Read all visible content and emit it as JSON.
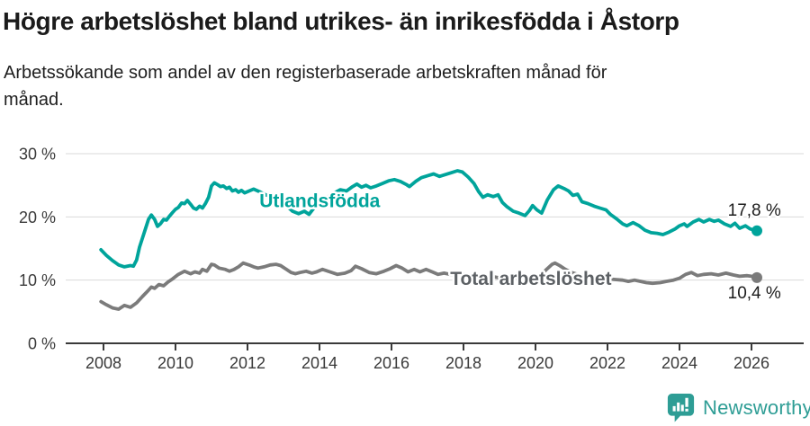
{
  "title": "Högre arbetslöshet bland utrikes- än inrikesfödda i Åstorp",
  "subtitle_lines": [
    "Arbetssökande som andel av den registerbaserade arbetskraften månad för",
    "månad."
  ],
  "footer": {
    "brand": "Newsworthy",
    "brand_color": "#2E9D95",
    "logo_icon": "bar-chart-speech-bubble-icon"
  },
  "colors": {
    "background": "#ffffff",
    "accent_teal": "#00A49B",
    "neutral_gray": "#7b7b7b",
    "grid": "#dadada",
    "axis": "#3a3a3a",
    "text": "#1b1b1b"
  },
  "chart_data": {
    "type": "line",
    "title": "Högre arbetslöshet bland utrikes- än inrikesfödda i Åstorp",
    "subtitle": "Arbetssökande som andel av den registerbaserade arbetskraften månad för månad.",
    "grid": "horizontal-only",
    "x_axis": {
      "ticks": [
        2008,
        2010,
        2012,
        2014,
        2016,
        2018,
        2020,
        2022,
        2024,
        2026
      ],
      "tick_labels": [
        "2008",
        "2010",
        "2012",
        "2014",
        "2016",
        "2018",
        "2020",
        "2022",
        "2024",
        "2026"
      ],
      "range": [
        2006.88,
        2027.45
      ]
    },
    "y_axis": {
      "ticks": [
        {
          "value": 0,
          "label": "0 %"
        },
        {
          "value": 10,
          "label": "10 %"
        },
        {
          "value": 20,
          "label": "20 %"
        },
        {
          "value": 30,
          "label": "30 %"
        }
      ],
      "unit": "%",
      "range": [
        0,
        34.5
      ]
    },
    "legend_position": "inline-labels",
    "series": [
      {
        "id": "utlandsfodda",
        "name": "Utlandsfödda",
        "color": "#00A49B",
        "label_color": "#00A49B",
        "end_value": "17,8 %",
        "inline_label": {
          "text": "Utlandsfödda",
          "year": 2012.33,
          "value": 21.55,
          "anchor": "start"
        },
        "end_label": {
          "text": "17,8 %",
          "year": 2026.82,
          "value": 20.2,
          "anchor": "end"
        },
        "points": [
          [
            2007.93,
            14.8
          ],
          [
            2008.08,
            13.9
          ],
          [
            2008.25,
            13.1
          ],
          [
            2008.42,
            12.4
          ],
          [
            2008.58,
            12.1
          ],
          [
            2008.75,
            12.3
          ],
          [
            2008.83,
            12.2
          ],
          [
            2008.92,
            13.2
          ],
          [
            2009.0,
            15.2
          ],
          [
            2009.08,
            16.6
          ],
          [
            2009.17,
            18.2
          ],
          [
            2009.25,
            19.6
          ],
          [
            2009.33,
            20.3
          ],
          [
            2009.42,
            19.6
          ],
          [
            2009.5,
            18.5
          ],
          [
            2009.58,
            18.9
          ],
          [
            2009.67,
            19.6
          ],
          [
            2009.75,
            19.5
          ],
          [
            2009.83,
            20.1
          ],
          [
            2009.92,
            20.7
          ],
          [
            2010.0,
            21.2
          ],
          [
            2010.08,
            21.5
          ],
          [
            2010.17,
            22.2
          ],
          [
            2010.25,
            22.1
          ],
          [
            2010.33,
            22.6
          ],
          [
            2010.42,
            22.0
          ],
          [
            2010.5,
            21.4
          ],
          [
            2010.58,
            21.2
          ],
          [
            2010.67,
            21.7
          ],
          [
            2010.75,
            21.4
          ],
          [
            2010.83,
            22.1
          ],
          [
            2010.92,
            23.1
          ],
          [
            2011.0,
            24.9
          ],
          [
            2011.08,
            25.4
          ],
          [
            2011.17,
            25.1
          ],
          [
            2011.25,
            24.8
          ],
          [
            2011.33,
            24.9
          ],
          [
            2011.42,
            24.5
          ],
          [
            2011.5,
            24.7
          ],
          [
            2011.58,
            24.1
          ],
          [
            2011.67,
            24.3
          ],
          [
            2011.75,
            23.9
          ],
          [
            2011.83,
            24.2
          ],
          [
            2011.92,
            23.8
          ],
          [
            2012.0,
            24.0
          ],
          [
            2012.17,
            24.4
          ],
          [
            2012.33,
            24.0
          ],
          [
            2012.5,
            23.5
          ],
          [
            2012.67,
            23.2
          ],
          [
            2012.83,
            23.3
          ],
          [
            2012.92,
            22.8
          ],
          [
            2013.08,
            21.8
          ],
          [
            2013.25,
            20.9
          ],
          [
            2013.42,
            20.5
          ],
          [
            2013.58,
            20.9
          ],
          [
            2013.71,
            20.4
          ],
          [
            2013.83,
            21.3
          ],
          [
            2013.96,
            22.1
          ],
          [
            2014.08,
            22.7
          ],
          [
            2014.25,
            23.2
          ],
          [
            2014.42,
            23.8
          ],
          [
            2014.58,
            24.3
          ],
          [
            2014.75,
            24.1
          ],
          [
            2014.92,
            24.8
          ],
          [
            2015.04,
            25.2
          ],
          [
            2015.17,
            24.7
          ],
          [
            2015.29,
            25.0
          ],
          [
            2015.42,
            24.6
          ],
          [
            2015.58,
            24.9
          ],
          [
            2015.75,
            25.3
          ],
          [
            2015.92,
            25.7
          ],
          [
            2016.08,
            25.9
          ],
          [
            2016.25,
            25.6
          ],
          [
            2016.42,
            25.1
          ],
          [
            2016.5,
            24.8
          ],
          [
            2016.67,
            25.6
          ],
          [
            2016.83,
            26.2
          ],
          [
            2017.0,
            26.5
          ],
          [
            2017.17,
            26.8
          ],
          [
            2017.33,
            26.4
          ],
          [
            2017.5,
            26.7
          ],
          [
            2017.67,
            27.0
          ],
          [
            2017.83,
            27.3
          ],
          [
            2017.97,
            27.1
          ],
          [
            2018.13,
            26.3
          ],
          [
            2018.29,
            25.3
          ],
          [
            2018.42,
            24.0
          ],
          [
            2018.54,
            23.1
          ],
          [
            2018.67,
            23.5
          ],
          [
            2018.83,
            23.2
          ],
          [
            2018.96,
            23.5
          ],
          [
            2019.08,
            22.3
          ],
          [
            2019.21,
            21.6
          ],
          [
            2019.38,
            20.9
          ],
          [
            2019.54,
            20.6
          ],
          [
            2019.71,
            20.2
          ],
          [
            2019.83,
            21.0
          ],
          [
            2019.92,
            21.8
          ],
          [
            2020.04,
            21.1
          ],
          [
            2020.17,
            20.6
          ],
          [
            2020.33,
            22.7
          ],
          [
            2020.5,
            24.3
          ],
          [
            2020.63,
            24.9
          ],
          [
            2020.79,
            24.5
          ],
          [
            2020.92,
            24.1
          ],
          [
            2021.04,
            23.4
          ],
          [
            2021.17,
            23.6
          ],
          [
            2021.29,
            22.4
          ],
          [
            2021.46,
            22.1
          ],
          [
            2021.63,
            21.7
          ],
          [
            2021.79,
            21.4
          ],
          [
            2021.96,
            21.1
          ],
          [
            2022.08,
            20.4
          ],
          [
            2022.25,
            19.7
          ],
          [
            2022.42,
            18.9
          ],
          [
            2022.54,
            18.6
          ],
          [
            2022.71,
            19.1
          ],
          [
            2022.88,
            18.6
          ],
          [
            2023.04,
            17.9
          ],
          [
            2023.21,
            17.5
          ],
          [
            2023.38,
            17.4
          ],
          [
            2023.54,
            17.2
          ],
          [
            2023.71,
            17.6
          ],
          [
            2023.88,
            18.1
          ],
          [
            2024.0,
            18.6
          ],
          [
            2024.13,
            18.9
          ],
          [
            2024.21,
            18.5
          ],
          [
            2024.38,
            19.2
          ],
          [
            2024.54,
            19.6
          ],
          [
            2024.67,
            19.2
          ],
          [
            2024.83,
            19.6
          ],
          [
            2024.96,
            19.3
          ],
          [
            2025.08,
            19.5
          ],
          [
            2025.25,
            18.9
          ],
          [
            2025.42,
            18.5
          ],
          [
            2025.54,
            19.0
          ],
          [
            2025.67,
            18.2
          ],
          [
            2025.83,
            18.6
          ],
          [
            2025.96,
            18.1
          ],
          [
            2026.15,
            17.8
          ]
        ]
      },
      {
        "id": "total",
        "name": "Total arbetslöshet",
        "color": "#7b7b7b",
        "label_color": "#5d6165",
        "end_value": "10,4 %",
        "inline_label": {
          "text": "Total arbetslöshet",
          "year": 2017.63,
          "value": 9.25,
          "anchor": "start"
        },
        "end_label": {
          "text": "10,4 %",
          "year": 2026.82,
          "value": 7.1,
          "anchor": "end"
        },
        "points": [
          [
            2007.93,
            6.6
          ],
          [
            2008.08,
            6.1
          ],
          [
            2008.25,
            5.6
          ],
          [
            2008.42,
            5.4
          ],
          [
            2008.58,
            6.0
          ],
          [
            2008.75,
            5.7
          ],
          [
            2008.92,
            6.4
          ],
          [
            2009.08,
            7.4
          ],
          [
            2009.25,
            8.4
          ],
          [
            2009.33,
            8.9
          ],
          [
            2009.42,
            8.7
          ],
          [
            2009.54,
            9.3
          ],
          [
            2009.67,
            9.1
          ],
          [
            2009.79,
            9.7
          ],
          [
            2009.92,
            10.2
          ],
          [
            2010.08,
            10.9
          ],
          [
            2010.25,
            11.4
          ],
          [
            2010.42,
            11.0
          ],
          [
            2010.54,
            11.3
          ],
          [
            2010.67,
            11.1
          ],
          [
            2010.75,
            11.7
          ],
          [
            2010.87,
            11.4
          ],
          [
            2011.0,
            12.5
          ],
          [
            2011.08,
            12.4
          ],
          [
            2011.21,
            11.9
          ],
          [
            2011.38,
            11.7
          ],
          [
            2011.5,
            11.4
          ],
          [
            2011.63,
            11.7
          ],
          [
            2011.75,
            12.1
          ],
          [
            2011.88,
            12.7
          ],
          [
            2012.04,
            12.4
          ],
          [
            2012.17,
            12.1
          ],
          [
            2012.29,
            11.9
          ],
          [
            2012.46,
            12.1
          ],
          [
            2012.63,
            12.4
          ],
          [
            2012.79,
            12.5
          ],
          [
            2012.92,
            12.3
          ],
          [
            2013.08,
            11.7
          ],
          [
            2013.21,
            11.2
          ],
          [
            2013.33,
            11.0
          ],
          [
            2013.46,
            11.2
          ],
          [
            2013.63,
            11.4
          ],
          [
            2013.79,
            11.1
          ],
          [
            2013.92,
            11.3
          ],
          [
            2014.08,
            11.7
          ],
          [
            2014.29,
            11.3
          ],
          [
            2014.5,
            10.9
          ],
          [
            2014.71,
            11.1
          ],
          [
            2014.88,
            11.5
          ],
          [
            2015.0,
            12.2
          ],
          [
            2015.17,
            11.8
          ],
          [
            2015.38,
            11.2
          ],
          [
            2015.58,
            11.0
          ],
          [
            2015.79,
            11.4
          ],
          [
            2015.96,
            11.8
          ],
          [
            2016.13,
            12.3
          ],
          [
            2016.29,
            11.9
          ],
          [
            2016.46,
            11.3
          ],
          [
            2016.63,
            11.7
          ],
          [
            2016.79,
            11.3
          ],
          [
            2016.96,
            11.7
          ],
          [
            2017.13,
            11.3
          ],
          [
            2017.29,
            10.9
          ],
          [
            2017.46,
            11.1
          ],
          [
            2017.63,
            10.9
          ],
          [
            2017.79,
            10.8
          ],
          [
            2017.96,
            11.0
          ],
          [
            2018.13,
            10.7
          ],
          [
            2018.33,
            10.5
          ],
          [
            2018.54,
            10.4
          ],
          [
            2018.75,
            10.6
          ],
          [
            2018.96,
            10.4
          ],
          [
            2019.17,
            10.2
          ],
          [
            2019.38,
            10.4
          ],
          [
            2019.58,
            10.2
          ],
          [
            2019.79,
            10.3
          ],
          [
            2019.96,
            10.2
          ],
          [
            2020.13,
            10.7
          ],
          [
            2020.29,
            11.6
          ],
          [
            2020.46,
            12.5
          ],
          [
            2020.54,
            12.7
          ],
          [
            2020.67,
            12.3
          ],
          [
            2020.83,
            11.7
          ],
          [
            2021.0,
            11.2
          ],
          [
            2021.17,
            10.9
          ],
          [
            2021.38,
            10.7
          ],
          [
            2021.58,
            10.5
          ],
          [
            2021.79,
            10.4
          ],
          [
            2022.0,
            10.2
          ],
          [
            2022.21,
            10.1
          ],
          [
            2022.42,
            10.0
          ],
          [
            2022.58,
            9.8
          ],
          [
            2022.75,
            10.0
          ],
          [
            2022.92,
            9.8
          ],
          [
            2023.08,
            9.6
          ],
          [
            2023.25,
            9.5
          ],
          [
            2023.46,
            9.6
          ],
          [
            2023.63,
            9.8
          ],
          [
            2023.83,
            10.0
          ],
          [
            2024.0,
            10.3
          ],
          [
            2024.17,
            10.9
          ],
          [
            2024.33,
            11.2
          ],
          [
            2024.5,
            10.7
          ],
          [
            2024.67,
            10.9
          ],
          [
            2024.88,
            11.0
          ],
          [
            2025.08,
            10.8
          ],
          [
            2025.29,
            11.1
          ],
          [
            2025.5,
            10.8
          ],
          [
            2025.67,
            10.6
          ],
          [
            2025.88,
            10.7
          ],
          [
            2026.0,
            10.6
          ],
          [
            2026.15,
            10.4
          ]
        ]
      }
    ]
  }
}
